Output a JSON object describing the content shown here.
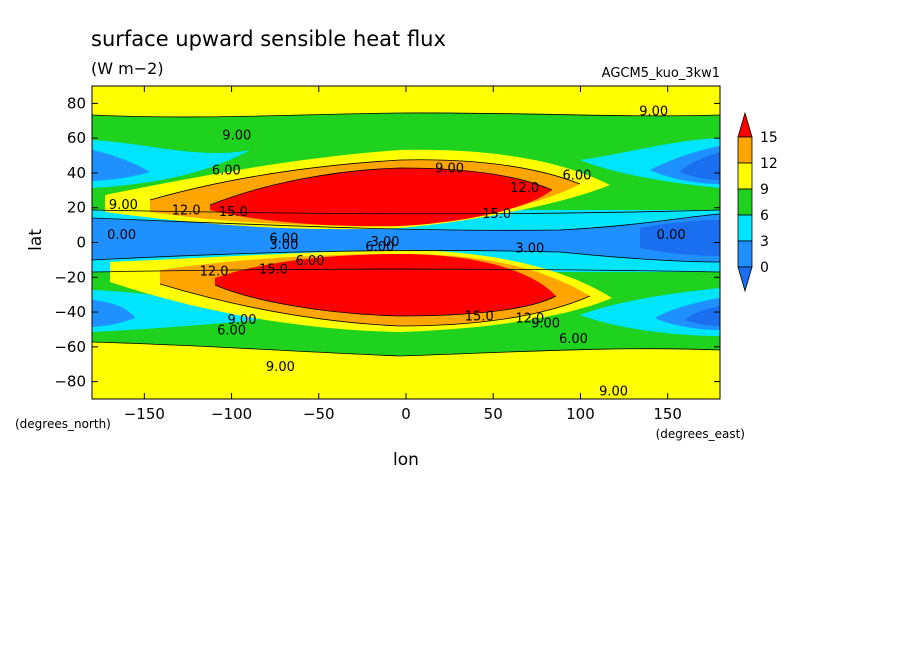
{
  "chart_data": {
    "type": "heatmap",
    "title": "surface upward sensible heat flux",
    "units": "(W m−2)",
    "run_label": "AGCM5_kuo_3kw1",
    "xlabel": "lon",
    "ylabel": "lat",
    "x_units": "(degrees_east)",
    "y_units": "(degrees_north)",
    "xlim": [
      -180,
      180
    ],
    "ylim": [
      -90,
      90
    ],
    "x_ticks": [
      -150,
      -100,
      -50,
      0,
      50,
      100,
      150
    ],
    "x_tick_labels": [
      "−150",
      "−100",
      "−50",
      "0",
      "50",
      "100",
      "150"
    ],
    "y_ticks": [
      80,
      60,
      40,
      20,
      0,
      -20,
      -40,
      -60,
      -80
    ],
    "y_tick_labels": [
      "80",
      "60",
      "40",
      "20",
      "0",
      "−20",
      "−40",
      "−60",
      "−80"
    ],
    "colorbar": {
      "levels": [
        15,
        12,
        9,
        6,
        3,
        0
      ],
      "labels": [
        "15",
        "12",
        "9",
        "6",
        "3",
        "0"
      ],
      "colors": {
        "below_0": "#1a6ef0",
        "0_3": "#1e90ff",
        "3_6": "#00e5ff",
        "6_9": "#1ed21e",
        "9_12": "#ffff00",
        "12_15": "#ffa500",
        "above_15": "#ff0000"
      }
    },
    "contour_labels": [
      {
        "text": "9.00",
        "lon": 142,
        "lat": 76
      },
      {
        "text": "9.00",
        "lon": -97,
        "lat": 62
      },
      {
        "text": "9.00",
        "lon": 25,
        "lat": 43
      },
      {
        "text": "6.00",
        "lon": -103,
        "lat": 42
      },
      {
        "text": "6.00",
        "lon": 98,
        "lat": 39
      },
      {
        "text": "12.0",
        "lon": 68,
        "lat": 32
      },
      {
        "text": "9.00",
        "lon": -162,
        "lat": 22
      },
      {
        "text": "12.0",
        "lon": -126,
        "lat": 19
      },
      {
        "text": "15.0",
        "lon": -99,
        "lat": 18
      },
      {
        "text": "15.0",
        "lon": 52,
        "lat": 17
      },
      {
        "text": "0.00",
        "lon": -163,
        "lat": 5
      },
      {
        "text": "0.00",
        "lon": 152,
        "lat": 5
      },
      {
        "text": "6.00",
        "lon": -70,
        "lat": 3
      },
      {
        "text": "3.00",
        "lon": -12,
        "lat": 1
      },
      {
        "text": "3.00",
        "lon": -70,
        "lat": -1
      },
      {
        "text": "6.00",
        "lon": -15,
        "lat": -2
      },
      {
        "text": "3.00",
        "lon": 71,
        "lat": -3
      },
      {
        "text": "6.00",
        "lon": -55,
        "lat": -10
      },
      {
        "text": "12.0",
        "lon": -110,
        "lat": -16
      },
      {
        "text": "15.0",
        "lon": -76,
        "lat": -15
      },
      {
        "text": "15.0",
        "lon": 42,
        "lat": -42
      },
      {
        "text": "12.0",
        "lon": 71,
        "lat": -43
      },
      {
        "text": "9.00",
        "lon": 80,
        "lat": -46
      },
      {
        "text": "9.00",
        "lon": -94,
        "lat": -44
      },
      {
        "text": "6.00",
        "lon": -100,
        "lat": -50
      },
      {
        "text": "6.00",
        "lon": 96,
        "lat": -55
      },
      {
        "text": "9.00",
        "lon": -72,
        "lat": -71
      },
      {
        "text": "9.00",
        "lon": 119,
        "lat": -85
      }
    ],
    "grid": false,
    "legend": "right"
  }
}
